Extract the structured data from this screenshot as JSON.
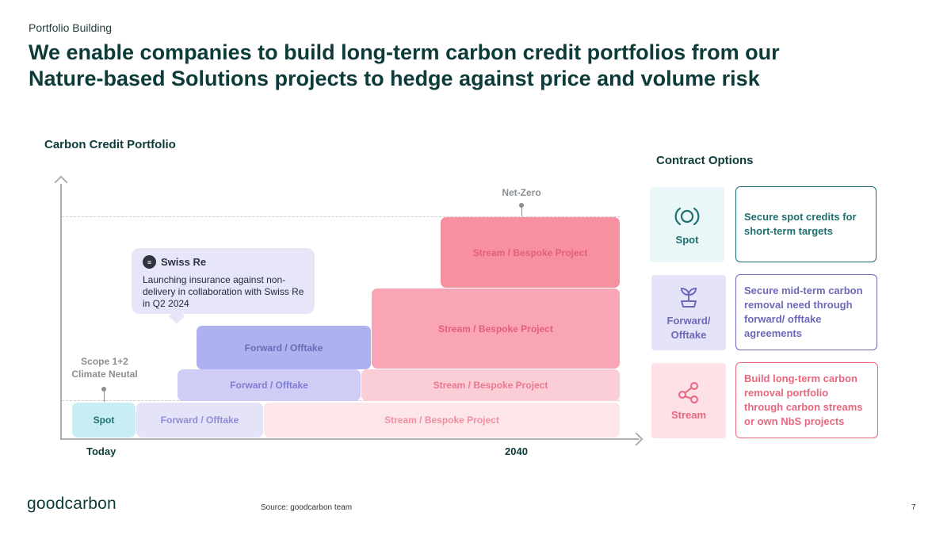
{
  "header": {
    "kicker": "Portfolio Building",
    "headline_line1": "We enable companies to build long-term carbon credit portfolios from our",
    "headline_line2": "Nature-based Solutions projects to hedge against price and volume risk"
  },
  "chart": {
    "title": "Carbon Credit Portfolio",
    "x_labels": {
      "start": "Today",
      "end": "2040"
    },
    "markers": {
      "scope": {
        "line1": "Scope 1+2",
        "line2": "Climate Neutal"
      },
      "netzero": "Net-Zero"
    },
    "blocks": {
      "spot": "Spot",
      "forward_row1": "Forward / Offtake",
      "stream_row1": "Stream / Bespoke Project",
      "forward_row2": "Forward / Offtake",
      "stream_row2": "Stream / Bespoke Project",
      "forward_row3": "Forward / Offtake",
      "stream_row3": "Stream / Bespoke Project",
      "stream_row4": "Stream / Bespoke Project"
    },
    "callout": {
      "brand": "Swiss Re",
      "text": "Launching insurance against non-delivery in collaboration with Swiss Re in Q2 2024"
    },
    "colors": {
      "spot": "#c7eef3",
      "forward_light": "#e5e3f7",
      "forward_mid": "#cfcdf5",
      "forward_dark": "#aeb1ef",
      "stream_light": "#fde6ea",
      "stream_mid": "#fbcdd6",
      "stream_dark": "#f9a5b5",
      "stream_darkest": "#f7909f"
    }
  },
  "contract_options": {
    "title": "Contract Options",
    "items": [
      {
        "name": "Spot",
        "icon": "circular-arrows-icon",
        "description": "Secure spot credits for short-term targets",
        "color": "#1e6f6f",
        "bg": "#eaf7f8"
      },
      {
        "name": "Forward/ Offtake",
        "icon": "sprout-icon",
        "description": "Secure mid-term carbon removal need through forward/ offtake agreements",
        "color": "#6c6ab8",
        "bg": "#e5e3f7"
      },
      {
        "name": "Stream",
        "icon": "share-nodes-icon",
        "description": "Build long-term carbon removal portfolio through carbon streams or own NbS projects",
        "color": "#e8677f",
        "bg": "#fde1e6"
      }
    ]
  },
  "footer": {
    "logo_good": "good",
    "logo_carbon": "carbon",
    "source": "Source: goodcarbon team",
    "page": "7"
  }
}
